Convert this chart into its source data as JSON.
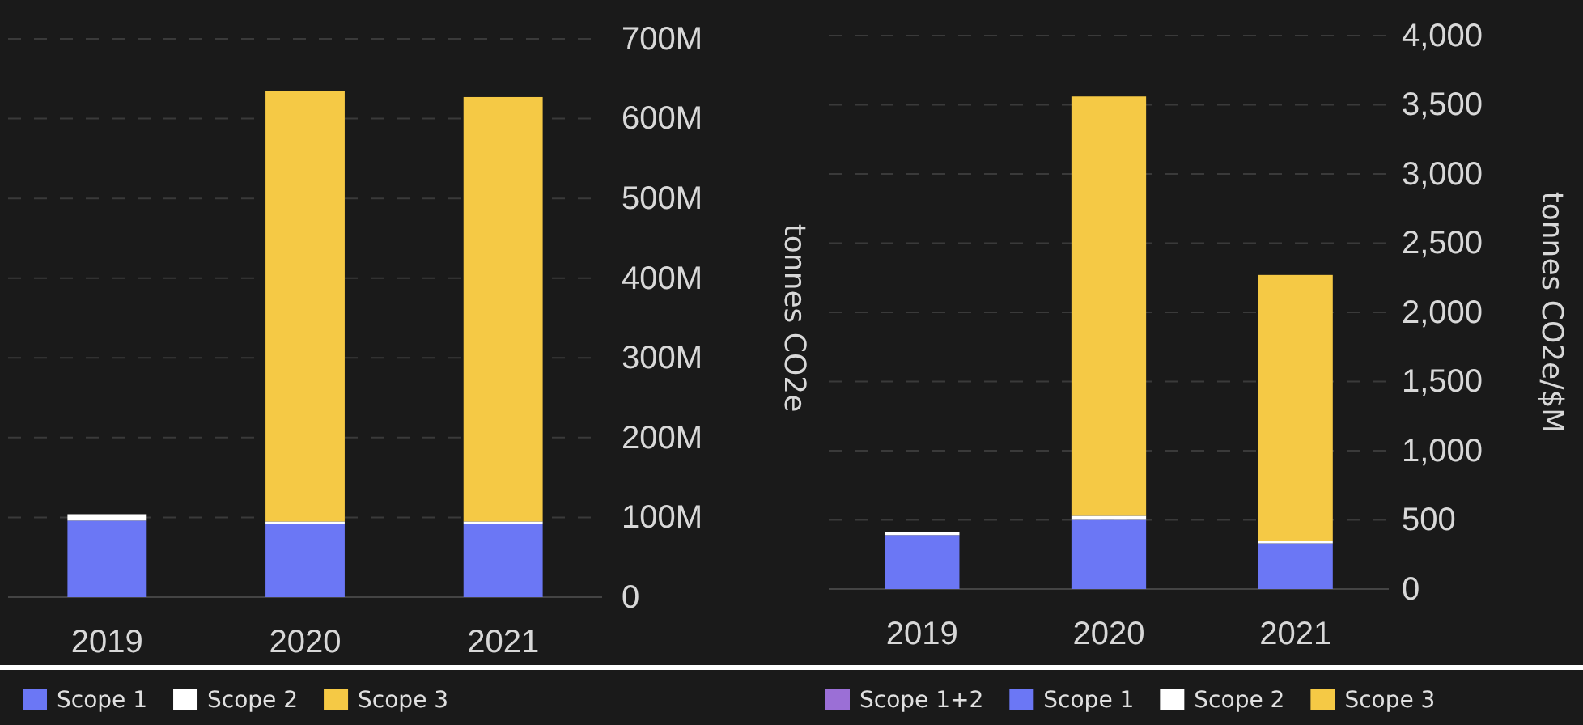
{
  "chart_data": [
    {
      "type": "bar",
      "stacked": true,
      "categories": [
        "2019",
        "2020",
        "2021"
      ],
      "ylabel": "tonnes CO2e",
      "ylim": [
        0,
        700000000
      ],
      "yticks": [
        {
          "value": 0,
          "label": "0"
        },
        {
          "value": 100000000,
          "label": "100M"
        },
        {
          "value": 200000000,
          "label": "200M"
        },
        {
          "value": 300000000,
          "label": "300M"
        },
        {
          "value": 400000000,
          "label": "400M"
        },
        {
          "value": 500000000,
          "label": "500M"
        },
        {
          "value": 600000000,
          "label": "600M"
        },
        {
          "value": 700000000,
          "label": "700M"
        }
      ],
      "grid": "y",
      "legend": "bottom",
      "series": [
        {
          "name": "Scope 1",
          "color": "#6b77f5",
          "values": [
            96000000,
            92000000,
            92000000
          ]
        },
        {
          "name": "Scope 2",
          "color": "#ffffff",
          "values": [
            8000000,
            3000000,
            3000000
          ]
        },
        {
          "name": "Scope 3",
          "color": "#f5c945",
          "values": [
            null,
            540000000,
            532000000
          ]
        }
      ]
    },
    {
      "type": "bar",
      "stacked": true,
      "categories": [
        "2019",
        "2020",
        "2021"
      ],
      "ylabel": "tonnes CO2e/$M",
      "ylim": [
        0,
        4000
      ],
      "yticks": [
        0,
        500,
        {
          "value": 1000,
          "label": "1,000"
        },
        {
          "value": 1500,
          "label": "1,500"
        },
        {
          "value": 2000,
          "label": "2,000"
        },
        {
          "value": 2500,
          "label": "2,500"
        },
        {
          "value": 3000,
          "label": "3,000"
        },
        {
          "value": 3500,
          "label": "3,500"
        },
        {
          "value": 4000,
          "label": "4,000"
        }
      ],
      "grid": "y",
      "legend": "bottom",
      "series": [
        {
          "name": "Scope 1+2",
          "color": "#9b6fd6",
          "values": [
            null,
            null,
            null
          ]
        },
        {
          "name": "Scope 1",
          "color": "#6b77f5",
          "values": [
            390,
            500,
            330
          ]
        },
        {
          "name": "Scope 2",
          "color": "#ffffff",
          "values": [
            20,
            30,
            20
          ]
        },
        {
          "name": "Scope 3",
          "color": "#f5c945",
          "values": [
            null,
            3030,
            1920
          ]
        }
      ]
    }
  ]
}
